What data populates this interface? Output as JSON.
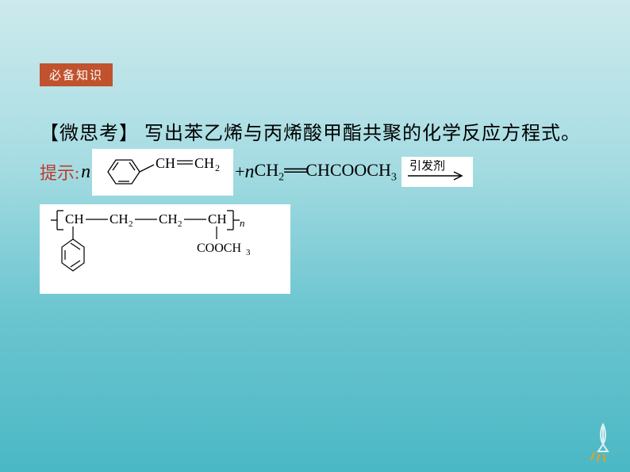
{
  "badge": {
    "label": "必备知识"
  },
  "question": {
    "label": "【微思考】",
    "text": "写出苯乙烯与丙烯酸甲酯共聚的化学反应方程式。"
  },
  "hint": {
    "label": "提示:"
  },
  "reactants": {
    "coef1": "n",
    "plus": "+",
    "coef2": "n",
    "monomer2_html": "CH<sub>2</sub><span class='dbond'>══</span>CHCOOCH<sub>3</sub>"
  },
  "arrow": {
    "top_label": "引发剂"
  },
  "styrene": {
    "chain": "CH══CH₂"
  },
  "product": {
    "backbone": "CH──CH₂──CH₂──CH",
    "sub_n": "n",
    "pendant": "COOCH₃"
  },
  "colors": {
    "badge_bg": "#c0522d",
    "badge_fg": "#ffffff",
    "hint_fg": "#c0392b",
    "text": "#000000"
  }
}
